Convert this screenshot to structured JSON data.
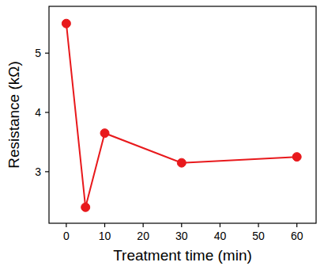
{
  "chart_data": {
    "type": "line",
    "x_label": "Treatment time (min)",
    "y_label": "Resistance (kΩ)",
    "x": [
      0,
      5,
      10,
      30,
      60
    ],
    "series": [
      {
        "color": "#e8191c",
        "marker": "circle",
        "values": [
          5.5,
          2.4,
          3.65,
          3.15,
          3.25
        ]
      }
    ],
    "xlim": [
      -4.5,
      65
    ],
    "xticks": [
      0,
      10,
      20,
      30,
      40,
      50,
      60
    ],
    "ylim": [
      2.13,
      5.79
    ],
    "yticks": [
      3,
      4,
      5
    ],
    "grid": false
  }
}
